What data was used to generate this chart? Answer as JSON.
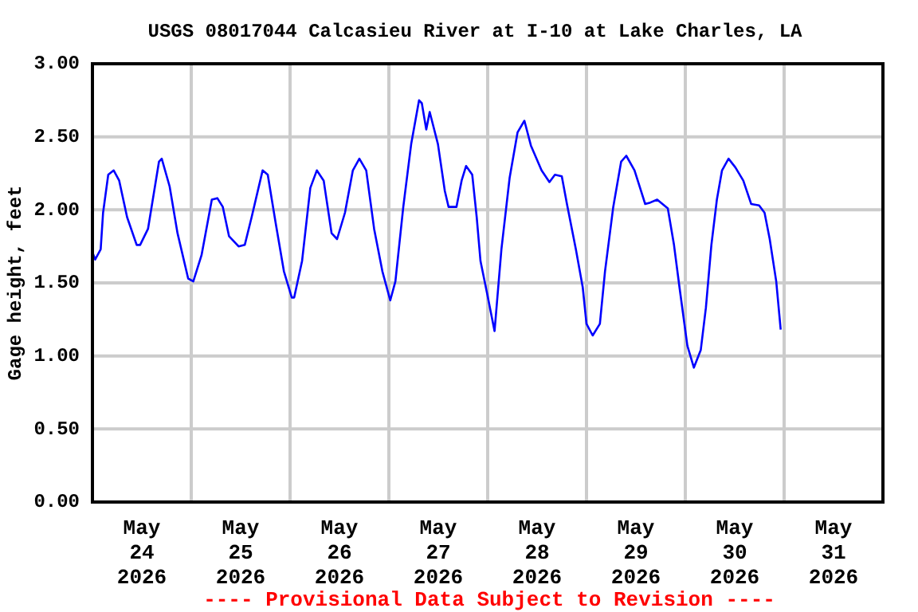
{
  "chart_data": {
    "type": "line",
    "title": "USGS 08017044 Calcasieu River at I-10 at Lake Charles, LA",
    "ylabel": "Gage height, feet",
    "annotations": [
      "---- Provisional Data Subject to Revision ----"
    ],
    "xlim": [
      "2026-05-24T00:00",
      "2026-06-01T00:00"
    ],
    "xticks": [
      {
        "value": "2026-05-24T12:00",
        "label": "May\n24\n2026"
      },
      {
        "value": "2026-05-25T00:00",
        "label": null
      },
      {
        "value": "2026-05-25T12:00",
        "label": "May\n25\n2026"
      },
      {
        "value": "2026-05-26T00:00",
        "label": null
      },
      {
        "value": "2026-05-26T12:00",
        "label": "May\n26\n2026"
      },
      {
        "value": "2026-05-27T00:00",
        "label": null
      },
      {
        "value": "2026-05-27T12:00",
        "label": "May\n27\n2026"
      },
      {
        "value": "2026-05-28T00:00",
        "label": null
      },
      {
        "value": "2026-05-28T12:00",
        "label": "May\n28\n2026"
      },
      {
        "value": "2026-05-29T00:00",
        "label": null
      },
      {
        "value": "2026-05-29T12:00",
        "label": "May\n29\n2026"
      },
      {
        "value": "2026-05-30T00:00",
        "label": null
      },
      {
        "value": "2026-05-30T12:00",
        "label": "May\n30\n2026"
      },
      {
        "value": "2026-05-31T00:00",
        "label": null
      },
      {
        "value": "2026-05-31T12:00",
        "label": "May\n31\n2026"
      }
    ],
    "ylim": [
      0,
      3
    ],
    "yticks": [
      {
        "value": 0,
        "label": "0.00"
      },
      {
        "value": 0.5,
        "label": "0.50"
      },
      {
        "value": 1,
        "label": "1.00"
      },
      {
        "value": 1.5,
        "label": "1.50"
      },
      {
        "value": 2,
        "label": "2.00"
      },
      {
        "value": 2.5,
        "label": "2.50"
      },
      {
        "value": 3,
        "label": "3.00"
      }
    ],
    "grid": true,
    "marker": "none",
    "line_style": "solid",
    "series": [
      {
        "color": "#0000ff",
        "x": [
          "2026-05-24T00:00",
          "2026-05-24T00:40",
          "2026-05-24T02:00",
          "2026-05-24T02:35",
          "2026-05-24T03:50",
          "2026-05-24T05:10",
          "2026-05-24T06:30",
          "2026-05-24T08:25",
          "2026-05-24T10:45",
          "2026-05-24T11:35",
          "2026-05-24T13:30",
          "2026-05-24T16:10",
          "2026-05-24T16:50",
          "2026-05-24T18:45",
          "2026-05-24T20:40",
          "2026-05-24T23:15",
          "2026-05-25T00:30",
          "2026-05-25T02:30",
          "2026-05-25T05:00",
          "2026-05-25T06:20",
          "2026-05-25T07:40",
          "2026-05-25T09:10",
          "2026-05-25T11:30",
          "2026-05-25T13:00",
          "2026-05-25T14:40",
          "2026-05-25T17:20",
          "2026-05-25T18:35",
          "2026-05-25T20:30",
          "2026-05-25T22:30",
          "2026-05-26T00:25",
          "2026-05-26T01:00",
          "2026-05-26T02:55",
          "2026-05-26T04:55",
          "2026-05-26T06:30",
          "2026-05-26T08:10",
          "2026-05-26T10:05",
          "2026-05-26T11:25",
          "2026-05-26T13:20",
          "2026-05-26T15:15",
          "2026-05-26T16:50",
          "2026-05-26T18:30",
          "2026-05-26T20:25",
          "2026-05-26T22:25",
          "2026-05-27T00:20",
          "2026-05-27T01:35",
          "2026-05-27T03:30",
          "2026-05-27T05:25",
          "2026-05-27T07:20",
          "2026-05-27T08:00",
          "2026-05-27T09:05",
          "2026-05-27T09:55",
          "2026-05-27T11:55",
          "2026-05-27T13:35",
          "2026-05-27T14:30",
          "2026-05-27T16:25",
          "2026-05-27T17:40",
          "2026-05-27T18:45",
          "2026-05-27T20:15",
          "2026-05-27T21:20",
          "2026-05-27T22:15",
          "2026-05-27T23:55",
          "2026-05-28T01:40",
          "2026-05-28T03:20",
          "2026-05-28T05:20",
          "2026-05-28T07:15",
          "2026-05-28T08:55",
          "2026-05-28T10:30",
          "2026-05-28T13:05",
          "2026-05-28T15:00",
          "2026-05-28T16:20",
          "2026-05-28T18:00",
          "2026-05-28T19:15",
          "2026-05-28T21:25",
          "2026-05-28T23:05",
          "2026-05-29T00:00",
          "2026-05-29T01:30",
          "2026-05-29T03:15",
          "2026-05-29T04:30",
          "2026-05-29T06:30",
          "2026-05-29T08:25",
          "2026-05-29T09:40",
          "2026-05-29T11:40",
          "2026-05-29T14:15",
          "2026-05-29T15:30",
          "2026-05-29T17:10",
          "2026-05-29T19:45",
          "2026-05-29T21:15",
          "2026-05-29T22:35",
          "2026-05-30T00:30",
          "2026-05-30T02:05",
          "2026-05-30T03:45",
          "2026-05-30T05:00",
          "2026-05-30T06:20",
          "2026-05-30T07:40",
          "2026-05-30T08:55",
          "2026-05-30T10:30",
          "2026-05-30T12:10",
          "2026-05-30T14:05",
          "2026-05-30T16:00",
          "2026-05-30T17:55",
          "2026-05-30T19:15",
          "2026-05-30T20:30",
          "2026-05-30T22:05",
          "2026-05-30T23:10"
        ],
        "values": [
          1.71,
          1.66,
          1.73,
          1.98,
          2.24,
          2.27,
          2.2,
          1.95,
          1.76,
          1.76,
          1.87,
          2.33,
          2.35,
          2.16,
          1.84,
          1.53,
          1.51,
          1.69,
          2.07,
          2.08,
          2.02,
          1.82,
          1.75,
          1.76,
          1.95,
          2.27,
          2.24,
          1.91,
          1.58,
          1.4,
          1.4,
          1.65,
          2.15,
          2.27,
          2.2,
          1.84,
          1.8,
          1.98,
          2.27,
          2.35,
          2.27,
          1.87,
          1.58,
          1.38,
          1.51,
          2.02,
          2.45,
          2.75,
          2.73,
          2.55,
          2.67,
          2.45,
          2.13,
          2.02,
          2.02,
          2.2,
          2.3,
          2.24,
          1.95,
          1.65,
          1.42,
          1.17,
          1.73,
          2.22,
          2.53,
          2.61,
          2.44,
          2.27,
          2.19,
          2.24,
          2.23,
          2.04,
          1.73,
          1.47,
          1.22,
          1.14,
          1.22,
          1.58,
          2.02,
          2.33,
          2.37,
          2.27,
          2.04,
          2.05,
          2.07,
          2.01,
          1.76,
          1.47,
          1.07,
          0.92,
          1.04,
          1.33,
          1.76,
          2.07,
          2.27,
          2.35,
          2.29,
          2.2,
          2.04,
          2.03,
          1.98,
          1.8,
          1.51,
          1.18
        ]
      }
    ]
  }
}
